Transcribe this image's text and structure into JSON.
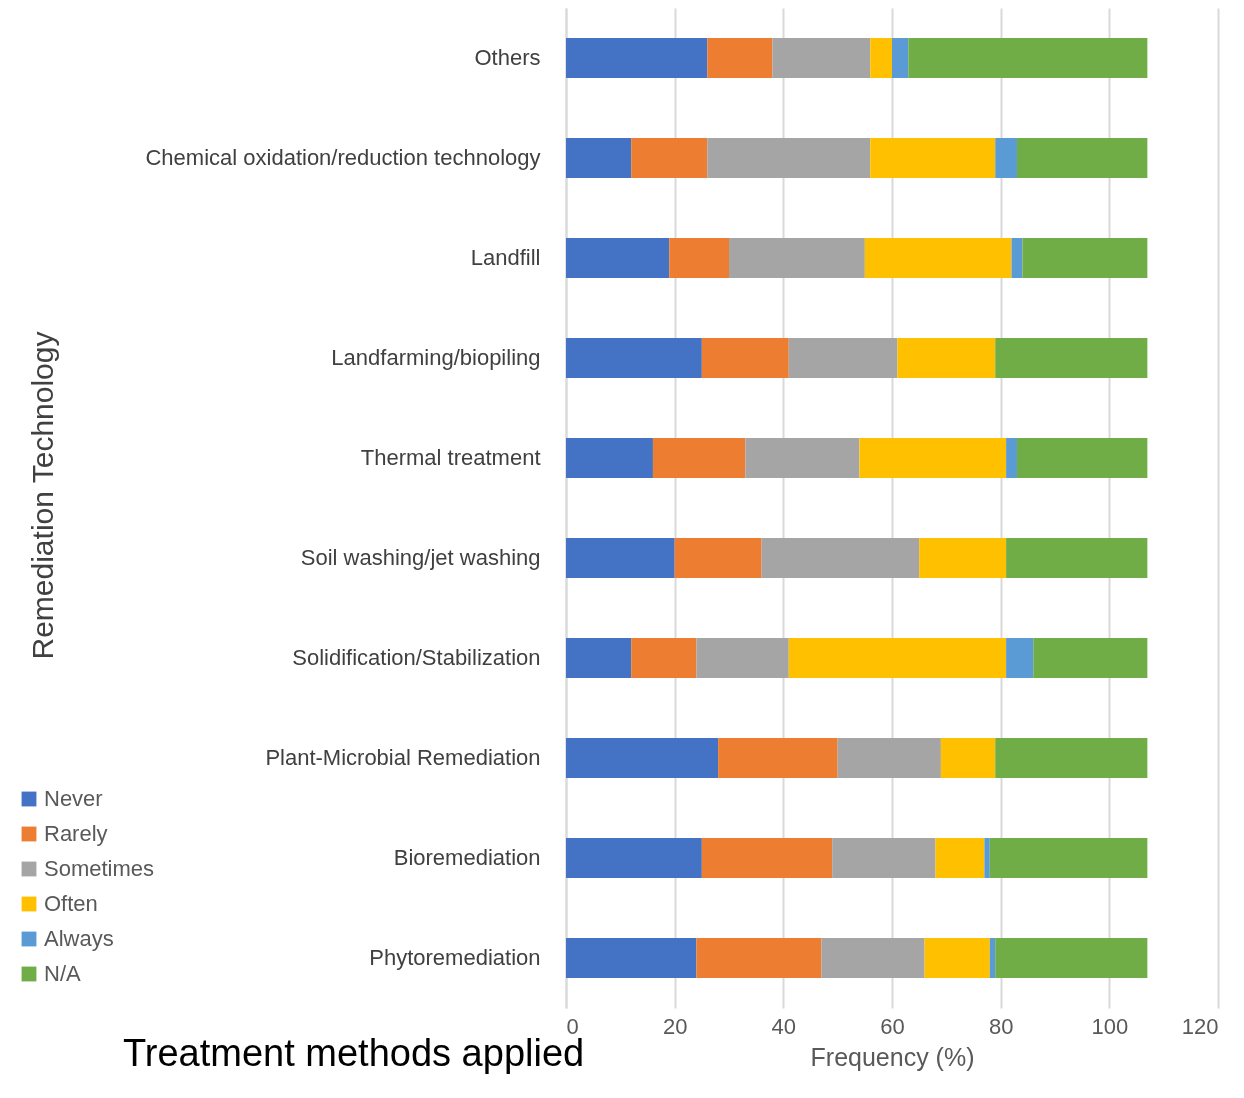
{
  "chart_data": {
    "type": "bar",
    "orientation": "horizontal",
    "stacked": true,
    "title": "Treatment methods applied",
    "xlabel": "Frequency (%)",
    "ylabel": "Remediation Technology",
    "categories": [
      "Others",
      "Chemical oxidation/reduction technology",
      "Landfill",
      "Landfarming/biopiling",
      "Thermal treatment",
      "Soil washing/jet washing",
      "Solidification/Stabilization",
      "Plant-Microbial Remediation",
      "Bioremediation",
      "Phytoremediation"
    ],
    "series": [
      {
        "name": "Never",
        "color": "#4472c4",
        "values": [
          26,
          12,
          19,
          25,
          16,
          20,
          12,
          28,
          25,
          24
        ]
      },
      {
        "name": "Rarely",
        "color": "#ed7d31",
        "values": [
          12,
          14,
          11,
          16,
          17,
          16,
          12,
          22,
          24,
          23
        ]
      },
      {
        "name": "Sometimes",
        "color": "#a5a5a5",
        "values": [
          18,
          30,
          25,
          20,
          21,
          29,
          17,
          19,
          19,
          19
        ]
      },
      {
        "name": "Often",
        "color": "#ffc000",
        "values": [
          4,
          23,
          27,
          18,
          27,
          16,
          40,
          10,
          9,
          12
        ]
      },
      {
        "name": "Always",
        "color": "#5b9bd5",
        "values": [
          3,
          4,
          2,
          0,
          2,
          0,
          5,
          0,
          1,
          1
        ]
      },
      {
        "name": "N/A",
        "color": "#70ad47",
        "values": [
          44,
          24,
          23,
          28,
          24,
          26,
          21,
          28,
          29,
          28
        ]
      }
    ],
    "xlim": [
      0,
      120
    ],
    "xticks": [
      0,
      20,
      40,
      60,
      80,
      100,
      120
    ],
    "grid": "x",
    "legend": "bottom left"
  }
}
